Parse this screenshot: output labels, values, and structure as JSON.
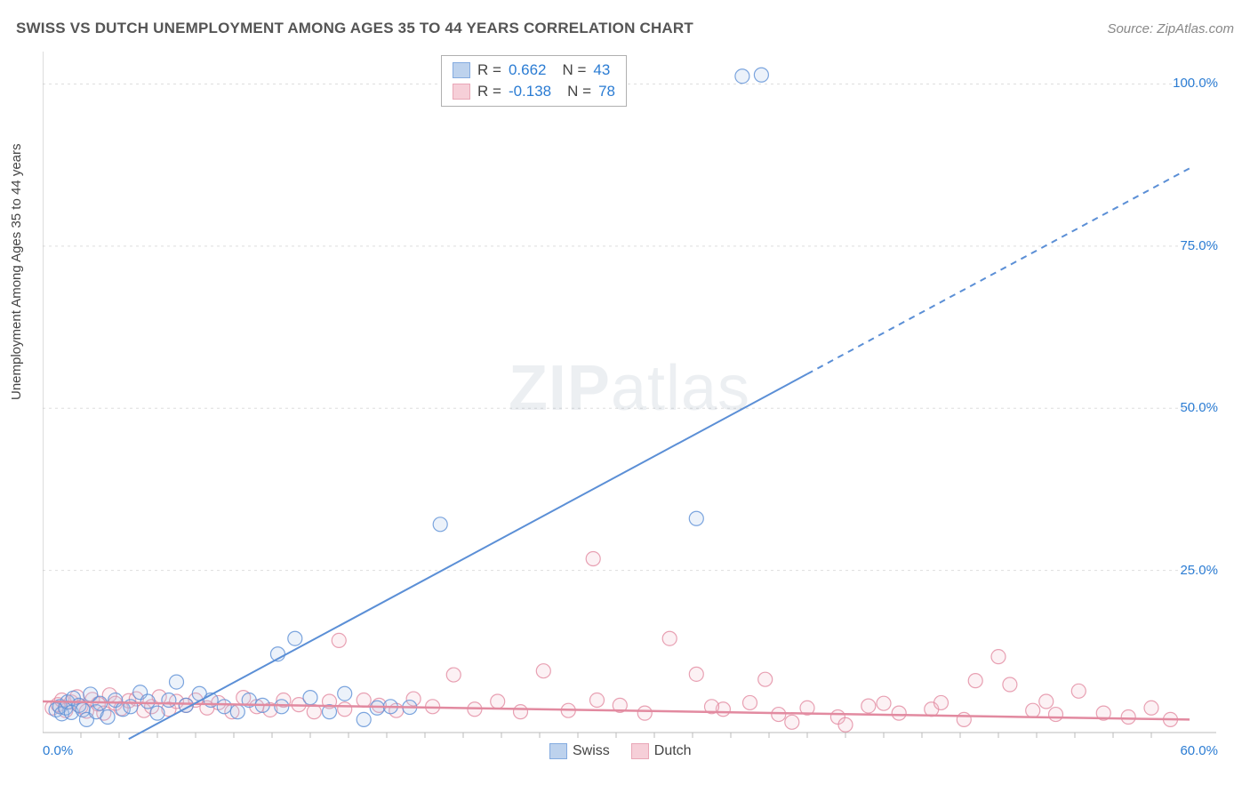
{
  "header": {
    "title": "SWISS VS DUTCH UNEMPLOYMENT AMONG AGES 35 TO 44 YEARS CORRELATION CHART",
    "source": "Source: ZipAtlas.com"
  },
  "ylabel": "Unemployment Among Ages 35 to 44 years",
  "watermark": {
    "bold": "ZIP",
    "rest": "atlas"
  },
  "chart": {
    "type": "scatter",
    "background_color": "#ffffff",
    "grid_color": "#dddddd",
    "axis_color": "#bbbbbb",
    "xlim": [
      0,
      60
    ],
    "ylim": [
      0,
      105
    ],
    "xticks": [
      0,
      60
    ],
    "xtick_labels": [
      "0.0%",
      "60.0%"
    ],
    "yticks": [
      25,
      50,
      75,
      100
    ],
    "ytick_labels": [
      "25.0%",
      "50.0%",
      "75.0%",
      "100.0%"
    ],
    "tick_label_color": "#2b7cd3",
    "marker_radius": 8,
    "marker_fill_opacity": 0.22,
    "marker_stroke_opacity": 0.8,
    "marker_stroke_width": 1.2,
    "series": {
      "swiss": {
        "label": "Swiss",
        "color": "#5b8fd6",
        "fill": "#a8c4e8",
        "R": "0.662",
        "N": "43",
        "trend": {
          "solid_to_x": 40,
          "x1": 4.5,
          "y1": -1,
          "x2": 60,
          "y2": 87,
          "stroke_width": 2
        },
        "points": [
          [
            0.7,
            3.5
          ],
          [
            0.9,
            4.0
          ],
          [
            1.0,
            2.9
          ],
          [
            1.2,
            3.8
          ],
          [
            1.3,
            4.7
          ],
          [
            1.5,
            3.1
          ],
          [
            1.6,
            5.3
          ],
          [
            1.9,
            4.2
          ],
          [
            2.1,
            3.5
          ],
          [
            2.3,
            2.0
          ],
          [
            2.5,
            5.9
          ],
          [
            2.8,
            3.2
          ],
          [
            3.0,
            4.5
          ],
          [
            3.4,
            2.4
          ],
          [
            3.8,
            5.0
          ],
          [
            4.2,
            3.6
          ],
          [
            4.6,
            4.0
          ],
          [
            5.1,
            6.2
          ],
          [
            5.5,
            4.8
          ],
          [
            6.0,
            3.0
          ],
          [
            6.6,
            5.0
          ],
          [
            7.0,
            7.8
          ],
          [
            7.5,
            4.2
          ],
          [
            8.2,
            6.0
          ],
          [
            8.8,
            5.0
          ],
          [
            9.5,
            4.0
          ],
          [
            10.2,
            3.2
          ],
          [
            10.8,
            5.0
          ],
          [
            11.5,
            4.2
          ],
          [
            12.3,
            12.1
          ],
          [
            12.5,
            4.0
          ],
          [
            13.2,
            14.5
          ],
          [
            14.0,
            5.4
          ],
          [
            15.0,
            3.2
          ],
          [
            15.8,
            6.0
          ],
          [
            16.8,
            2.0
          ],
          [
            17.5,
            3.8
          ],
          [
            18.2,
            4.0
          ],
          [
            20.8,
            32.1
          ],
          [
            34.2,
            33.0
          ],
          [
            36.6,
            101.2
          ],
          [
            37.6,
            101.4
          ],
          [
            19.2,
            3.9
          ]
        ]
      },
      "dutch": {
        "label": "Dutch",
        "color": "#e28aa0",
        "fill": "#f3c0cc",
        "R": "-0.138",
        "N": "78",
        "trend": {
          "x1": 0,
          "y1": 4.8,
          "x2": 60,
          "y2": 2.0,
          "stroke_width": 2.5
        },
        "points": [
          [
            0.5,
            3.8
          ],
          [
            0.8,
            4.3
          ],
          [
            1.0,
            5.0
          ],
          [
            1.2,
            3.4
          ],
          [
            1.5,
            4.7
          ],
          [
            1.8,
            5.5
          ],
          [
            2.0,
            4.0
          ],
          [
            2.3,
            3.3
          ],
          [
            2.6,
            5.1
          ],
          [
            2.9,
            4.4
          ],
          [
            3.2,
            3.0
          ],
          [
            3.5,
            5.8
          ],
          [
            3.8,
            4.5
          ],
          [
            4.1,
            3.7
          ],
          [
            4.5,
            4.9
          ],
          [
            4.9,
            5.2
          ],
          [
            5.3,
            3.4
          ],
          [
            5.7,
            4.0
          ],
          [
            6.1,
            5.5
          ],
          [
            6.6,
            3.6
          ],
          [
            7.0,
            4.8
          ],
          [
            7.5,
            4.2
          ],
          [
            8.0,
            5.0
          ],
          [
            8.6,
            3.8
          ],
          [
            9.2,
            4.6
          ],
          [
            9.9,
            3.2
          ],
          [
            10.5,
            5.4
          ],
          [
            11.2,
            4.0
          ],
          [
            11.9,
            3.5
          ],
          [
            12.6,
            5.0
          ],
          [
            13.4,
            4.3
          ],
          [
            14.2,
            3.2
          ],
          [
            15.0,
            4.8
          ],
          [
            15.5,
            14.2
          ],
          [
            15.8,
            3.6
          ],
          [
            16.8,
            5.0
          ],
          [
            17.6,
            4.2
          ],
          [
            18.5,
            3.4
          ],
          [
            19.4,
            5.2
          ],
          [
            20.4,
            4.0
          ],
          [
            21.5,
            8.9
          ],
          [
            22.6,
            3.6
          ],
          [
            23.8,
            4.8
          ],
          [
            25.0,
            3.2
          ],
          [
            26.2,
            9.5
          ],
          [
            27.5,
            3.4
          ],
          [
            28.8,
            26.8
          ],
          [
            29.0,
            5.0
          ],
          [
            30.2,
            4.2
          ],
          [
            31.5,
            3.0
          ],
          [
            32.8,
            14.5
          ],
          [
            34.2,
            9.0
          ],
          [
            35.6,
            3.6
          ],
          [
            37.0,
            4.6
          ],
          [
            38.5,
            2.8
          ],
          [
            40.0,
            3.8
          ],
          [
            41.6,
            2.4
          ],
          [
            43.2,
            4.1
          ],
          [
            44.8,
            3.0
          ],
          [
            46.5,
            3.6
          ],
          [
            48.2,
            2.0
          ],
          [
            48.8,
            8.0
          ],
          [
            50.0,
            11.7
          ],
          [
            50.6,
            7.4
          ],
          [
            51.8,
            3.4
          ],
          [
            53.0,
            2.8
          ],
          [
            54.2,
            6.4
          ],
          [
            55.5,
            3.0
          ],
          [
            56.8,
            2.4
          ],
          [
            58.0,
            3.8
          ],
          [
            59.0,
            2.0
          ],
          [
            42.0,
            1.2
          ],
          [
            44.0,
            4.5
          ],
          [
            37.8,
            8.2
          ],
          [
            35.0,
            4.0
          ],
          [
            39.2,
            1.6
          ],
          [
            47.0,
            4.6
          ],
          [
            52.5,
            4.8
          ]
        ]
      }
    }
  },
  "legend": {
    "R_label": "R =",
    "N_label": "N ="
  }
}
